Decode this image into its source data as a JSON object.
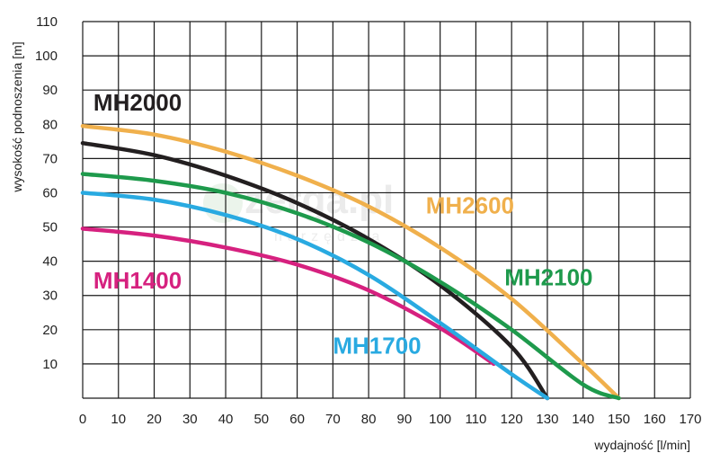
{
  "chart_data": {
    "type": "line",
    "xlabel": "wydajność [l/min]",
    "ylabel": "wysokość podnoszenia [m]",
    "xlim": [
      0,
      170
    ],
    "ylim": [
      0,
      110
    ],
    "x_ticks": [
      0,
      10,
      20,
      30,
      40,
      50,
      60,
      70,
      80,
      90,
      100,
      110,
      120,
      130,
      140,
      150,
      160,
      170
    ],
    "y_ticks": [
      10,
      20,
      30,
      40,
      50,
      60,
      70,
      80,
      90,
      100,
      110
    ],
    "grid": true,
    "watermark": {
      "main": "zerga.pl",
      "sub": "narzędzia"
    },
    "series": [
      {
        "name": "MH2000",
        "color": "#231f20",
        "label_at": [
          3,
          84
        ],
        "points": [
          [
            0,
            74.5
          ],
          [
            20,
            71
          ],
          [
            40,
            65
          ],
          [
            60,
            57
          ],
          [
            80,
            46.5
          ],
          [
            100,
            33
          ],
          [
            120,
            15
          ],
          [
            130,
            0
          ]
        ]
      },
      {
        "name": "MH2600",
        "color": "#f0b04c",
        "label_at": [
          96,
          54
        ],
        "points": [
          [
            0,
            79.5
          ],
          [
            20,
            77
          ],
          [
            40,
            72
          ],
          [
            60,
            65
          ],
          [
            80,
            56
          ],
          [
            100,
            44
          ],
          [
            120,
            29
          ],
          [
            140,
            10
          ],
          [
            150,
            0
          ]
        ]
      },
      {
        "name": "MH2100",
        "color": "#1e9a4c",
        "label_at": [
          118,
          33
        ],
        "points": [
          [
            0,
            65.5
          ],
          [
            20,
            63.5
          ],
          [
            40,
            60
          ],
          [
            60,
            54
          ],
          [
            80,
            45.5
          ],
          [
            100,
            34
          ],
          [
            120,
            20
          ],
          [
            140,
            4
          ],
          [
            150,
            0
          ]
        ]
      },
      {
        "name": "MH1400",
        "color": "#d6217f",
        "label_at": [
          3,
          32
        ],
        "points": [
          [
            0,
            49.5
          ],
          [
            20,
            47.5
          ],
          [
            40,
            44
          ],
          [
            60,
            39
          ],
          [
            80,
            31.5
          ],
          [
            100,
            20.5
          ],
          [
            115,
            10
          ]
        ]
      },
      {
        "name": "MH1700",
        "color": "#29aae1",
        "label_at": [
          70,
          13
        ],
        "points": [
          [
            0,
            60
          ],
          [
            20,
            58
          ],
          [
            40,
            53.5
          ],
          [
            60,
            46.5
          ],
          [
            80,
            36
          ],
          [
            100,
            22
          ],
          [
            120,
            7
          ],
          [
            130,
            0
          ]
        ]
      }
    ]
  }
}
